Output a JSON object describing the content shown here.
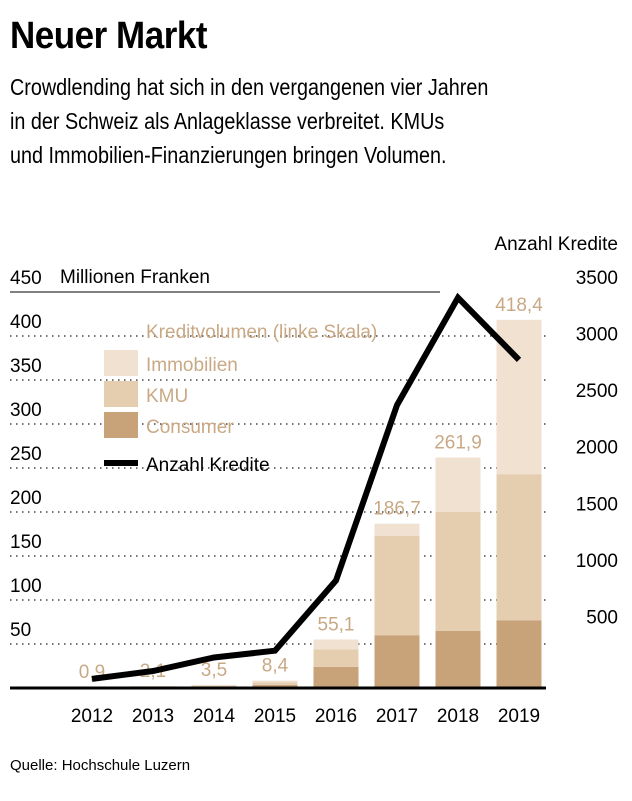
{
  "header": {
    "title": "Neuer Markt",
    "subtitle_lines": [
      "Crowdlending hat sich in den vergangenen vier Jahren",
      "in der Schweiz als Anlageklasse verbreitet. KMUs",
      "und Immobilien-Finanzierungen bringen Volumen."
    ]
  },
  "source": "Quelle: Hochschule Luzern",
  "colors": {
    "immobilien": "#f0e1d0",
    "kmu": "#e5cdb0",
    "consumer": "#c8a37a",
    "line": "#000000",
    "total_label": "#c9a985",
    "legend_title": "#c9a985"
  },
  "chart_data": {
    "type": "bar",
    "stacked": true,
    "categories": [
      "2012",
      "2013",
      "2014",
      "2015",
      "2016",
      "2017",
      "2018",
      "2019"
    ],
    "left_axis": {
      "unit_label": "Millionen Franken",
      "range": [
        0,
        450
      ],
      "ticks": [
        50,
        100,
        150,
        200,
        250,
        300,
        350,
        400,
        450
      ]
    },
    "right_axis": {
      "title": "Anzahl Kredite",
      "range": [
        0,
        3500
      ],
      "ticks": [
        500,
        1000,
        1500,
        2000,
        2500,
        3000,
        3500
      ]
    },
    "legend_title": "Kreditvolumen (linke Skala)",
    "series": [
      {
        "name": "Consumer",
        "values": [
          0.3,
          0.8,
          1.5,
          3.5,
          24,
          60,
          65,
          77
        ]
      },
      {
        "name": "KMU",
        "values": [
          0.3,
          0.8,
          1.2,
          3.0,
          20,
          113,
          135,
          166
        ]
      },
      {
        "name": "Immobilien",
        "values": [
          0.3,
          0.5,
          0.8,
          1.9,
          11.1,
          13.7,
          61.9,
          175.4
        ]
      }
    ],
    "totals": [
      "0,9",
      "2,1",
      "3,5",
      "8,4",
      "55,1",
      "186,7",
      "261,9",
      "418,4"
    ],
    "line_series": {
      "name": "Anzahl Kredite",
      "axis": "right",
      "values": [
        80,
        150,
        270,
        330,
        950,
        2500,
        3450,
        2900
      ]
    }
  }
}
